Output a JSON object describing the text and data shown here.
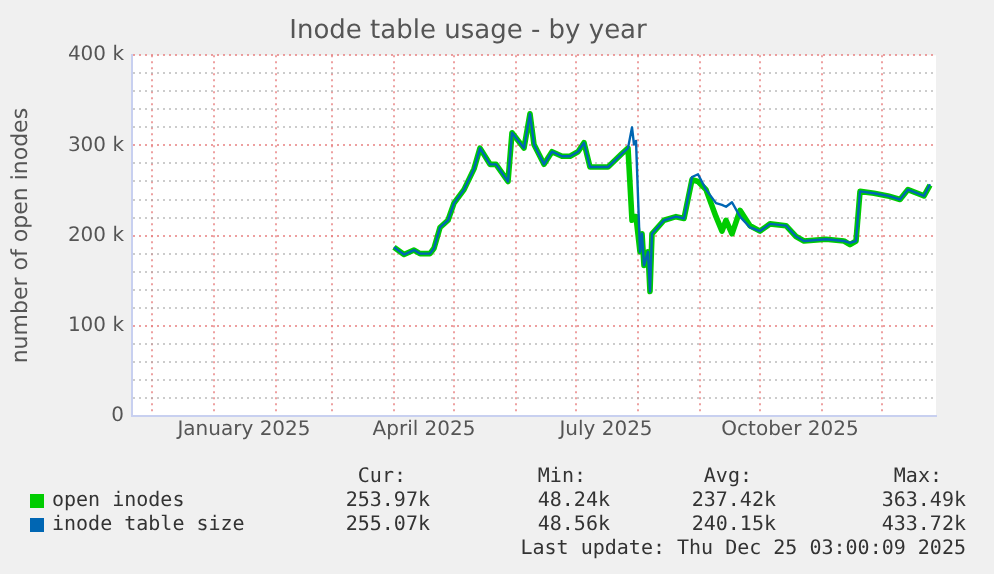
{
  "chart_data": {
    "type": "line",
    "title": "Inode table usage - by year",
    "ylabel": "number of open inodes",
    "xlim": [
      "2024-11-21",
      "2025-12-28"
    ],
    "xticks": [
      {
        "value": "2024-12-01",
        "label": null
      },
      {
        "value": "2025-01-01",
        "label": null
      },
      {
        "value": "2025-02-01",
        "label": null
      },
      {
        "value": "2025-03-01",
        "label": null
      },
      {
        "value": "2025-04-01",
        "label": null
      },
      {
        "value": "2025-05-01",
        "label": null
      },
      {
        "value": "2025-06-01",
        "label": null
      },
      {
        "value": "2025-07-01",
        "label": null
      },
      {
        "value": "2025-08-01",
        "label": null
      },
      {
        "value": "2025-09-01",
        "label": null
      },
      {
        "value": "2025-10-01",
        "label": null
      },
      {
        "value": "2025-11-01",
        "label": null
      },
      {
        "value": "2025-12-01",
        "label": null
      },
      {
        "value": "2025-01-16",
        "label": "January 2025"
      },
      {
        "value": "2025-04-16",
        "label": "April 2025"
      },
      {
        "value": "2025-07-16",
        "label": "July 2025"
      },
      {
        "value": "2025-10-16",
        "label": "October 2025"
      }
    ],
    "ylim": [
      0,
      400000
    ],
    "yticks": [
      0,
      {
        "value": 20000,
        "label": null
      },
      {
        "value": 40000,
        "label": null
      },
      {
        "value": 60000,
        "label": null
      },
      {
        "value": 80000,
        "label": null
      },
      {
        "value": 100000,
        "label": "100 k"
      },
      {
        "value": 120000,
        "label": null
      },
      {
        "value": 140000,
        "label": null
      },
      {
        "value": 160000,
        "label": null
      },
      {
        "value": 180000,
        "label": null
      },
      {
        "value": 200000,
        "label": "200 k"
      },
      {
        "value": 220000,
        "label": null
      },
      {
        "value": 240000,
        "label": null
      },
      {
        "value": 260000,
        "label": null
      },
      {
        "value": 280000,
        "label": null
      },
      {
        "value": 300000,
        "label": "300 k"
      },
      {
        "value": 320000,
        "label": null
      },
      {
        "value": 340000,
        "label": null
      },
      {
        "value": 360000,
        "label": null
      },
      {
        "value": 380000,
        "label": null
      },
      {
        "value": 400000,
        "label": "400 k"
      }
    ],
    "grid": true,
    "legend": "bottom",
    "marker": "none",
    "line_style": "solid",
    "x": [
      "2025-04-01",
      "2025-04-06",
      "2025-04-11",
      "2025-04-14",
      "2025-04-19",
      "2025-04-21",
      "2025-04-24",
      "2025-04-28",
      "2025-05-01",
      "2025-05-06",
      "2025-05-11",
      "2025-05-14",
      "2025-05-19",
      "2025-05-22",
      "2025-05-28",
      "2025-05-30",
      "2025-06-05",
      "2025-06-08",
      "2025-06-10",
      "2025-06-15",
      "2025-06-19",
      "2025-06-24",
      "2025-06-28",
      "2025-07-02",
      "2025-07-05",
      "2025-07-08",
      "2025-07-17",
      "2025-07-24",
      "2025-07-27",
      "2025-07-29",
      "2025-07-30",
      "2025-07-31",
      "2025-08-02",
      "2025-08-03",
      "2025-08-04",
      "2025-08-06",
      "2025-08-07",
      "2025-08-08",
      "2025-08-14",
      "2025-08-20",
      "2025-08-24",
      "2025-08-28",
      "2025-08-31",
      "2025-09-04",
      "2025-09-09",
      "2025-09-12",
      "2025-09-14",
      "2025-09-17",
      "2025-09-21",
      "2025-09-26",
      "2025-10-01",
      "2025-10-06",
      "2025-10-14",
      "2025-10-19",
      "2025-10-23",
      "2025-11-03",
      "2025-11-12",
      "2025-11-15",
      "2025-11-18",
      "2025-11-20",
      "2025-11-27",
      "2025-12-04",
      "2025-12-10",
      "2025-12-14",
      "2025-12-22",
      "2025-12-25"
    ],
    "series": [
      {
        "name": "open inodes",
        "color": "#00cc00",
        "values": [
          187000,
          179000,
          184000,
          180000,
          180000,
          186000,
          209000,
          217000,
          236000,
          251000,
          274000,
          297000,
          279000,
          279000,
          260000,
          314000,
          297000,
          335000,
          301000,
          279000,
          293000,
          288000,
          288000,
          293000,
          303000,
          276000,
          276000,
          291000,
          297000,
          217000,
          221000,
          221000,
          182000,
          202000,
          167000,
          182000,
          138000,
          202000,
          217000,
          221000,
          219000,
          262000,
          260000,
          251000,
          221000,
          205000,
          217000,
          202000,
          228000,
          211000,
          205000,
          213000,
          211000,
          199000,
          194000,
          196000,
          194000,
          190000,
          194000,
          249000,
          247000,
          244000,
          240000,
          251000,
          244000,
          256000
        ]
      },
      {
        "name": "inode table size",
        "color": "#0066b3",
        "values": [
          187000,
          179000,
          184000,
          180000,
          180000,
          186000,
          209000,
          217000,
          236000,
          251000,
          274000,
          297000,
          279000,
          279000,
          260000,
          314000,
          297000,
          335000,
          301000,
          279000,
          293000,
          288000,
          288000,
          293000,
          303000,
          276000,
          276000,
          291000,
          297000,
          320000,
          301000,
          305000,
          182000,
          202000,
          167000,
          182000,
          138000,
          202000,
          217000,
          221000,
          219000,
          265000,
          268000,
          251000,
          236000,
          234000,
          232000,
          237000,
          221000,
          209000,
          205000,
          213000,
          211000,
          199000,
          194000,
          196000,
          194000,
          192000,
          194000,
          249000,
          247000,
          244000,
          240000,
          251000,
          244000,
          257000
        ]
      }
    ],
    "annotations": [
      "Cur:",
      "Min:",
      "Avg:",
      "Max:",
      "253.97k",
      "48.24k",
      "237.42k",
      "363.49k",
      "255.07k",
      "48.56k",
      "240.15k",
      "433.72k",
      "Last update: Thu Dec 25 03:00:09 2025"
    ]
  }
}
